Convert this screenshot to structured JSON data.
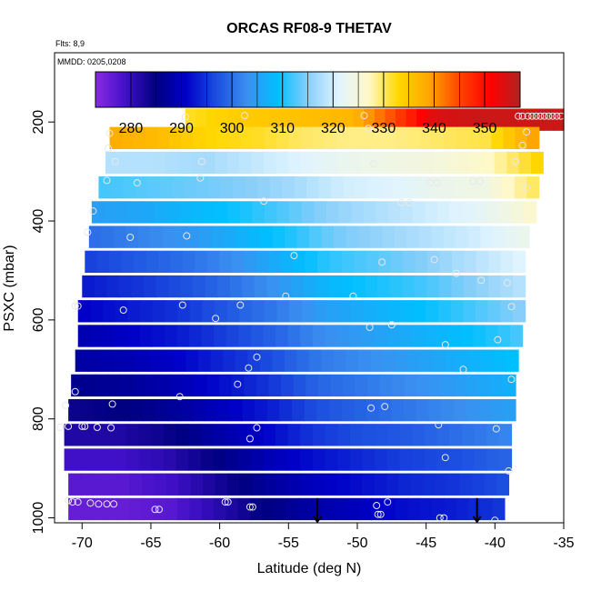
{
  "chart_data": {
    "type": "heatmap",
    "title": "ORCAS RF08-9 THETAV",
    "annotations": [
      "Flts: 8,9",
      "MMDD: 0205,0208"
    ],
    "xlabel": "Latitude (deg N)",
    "ylabel": "PSXC (mbar)",
    "xlim": [
      -72,
      -35
    ],
    "ylim": [
      1010,
      60
    ],
    "y_reversed": true,
    "x_ticks": [
      -70,
      -65,
      -60,
      -55,
      -50,
      -45,
      -40,
      -35
    ],
    "y_ticks": [
      200,
      400,
      600,
      800,
      1000
    ],
    "colorbar": {
      "ticks": [
        280,
        290,
        300,
        310,
        320,
        330,
        340,
        350
      ],
      "range": [
        273,
        357
      ],
      "colors": [
        "#8a2be2",
        "#4010c8",
        "#000080",
        "#0000c8",
        "#1c4fe0",
        "#3b8ff0",
        "#00bfff",
        "#87cefa",
        "#e0f4ff",
        "#fff8c8",
        "#ffd700",
        "#ffa500",
        "#ff4500",
        "#ff0000",
        "#b22222"
      ]
    },
    "layers": [
      {
        "p": 195,
        "lat_min": -62.5,
        "lat_max": -35.0,
        "values": [
          332,
          334,
          335,
          336,
          337,
          345,
          354,
          355,
          355,
          355
        ]
      },
      {
        "p": 232,
        "lat_min": -68.0,
        "lat_max": -36.8,
        "values": [
          338,
          336,
          333,
          332,
          330,
          329,
          329,
          330,
          331,
          339
        ]
      },
      {
        "p": 282,
        "lat_min": -68.3,
        "lat_max": -36.5,
        "values": [
          318,
          318,
          317,
          319,
          321,
          323,
          324,
          325,
          327,
          333
        ]
      },
      {
        "p": 332,
        "lat_min": -68.8,
        "lat_max": -36.8,
        "values": [
          312,
          313,
          314,
          315,
          317,
          320,
          321,
          323,
          324,
          330
        ]
      },
      {
        "p": 382,
        "lat_min": -69.3,
        "lat_max": -37.0,
        "values": [
          305,
          306,
          308,
          310,
          313,
          316,
          318,
          320,
          322,
          326
        ]
      },
      {
        "p": 432,
        "lat_min": -69.5,
        "lat_max": -37.5,
        "values": [
          300,
          302,
          304,
          307,
          310,
          314,
          316,
          318,
          320,
          323
        ]
      },
      {
        "p": 482,
        "lat_min": -69.8,
        "lat_max": -37.8,
        "values": [
          296,
          298,
          300,
          303,
          307,
          311,
          313,
          315,
          318,
          321
        ]
      },
      {
        "p": 532,
        "lat_min": -70.0,
        "lat_max": -37.8,
        "values": [
          293,
          295,
          297,
          300,
          304,
          308,
          310,
          312,
          315,
          318
        ]
      },
      {
        "p": 582,
        "lat_min": -70.3,
        "lat_max": -37.8,
        "values": [
          291,
          293,
          295,
          298,
          301,
          305,
          307,
          309,
          312,
          315
        ]
      },
      {
        "p": 632,
        "lat_min": -70.3,
        "lat_max": -38.0,
        "values": [
          289,
          291,
          293,
          296,
          299,
          303,
          305,
          307,
          309,
          312
        ]
      },
      {
        "p": 682,
        "lat_min": -70.5,
        "lat_max": -38.3,
        "values": [
          288,
          289,
          291,
          294,
          297,
          301,
          303,
          305,
          307,
          309
        ]
      },
      {
        "p": 732,
        "lat_min": -70.8,
        "lat_max": -38.5,
        "values": [
          286,
          287,
          289,
          292,
          295,
          299,
          301,
          303,
          305,
          307
        ]
      },
      {
        "p": 782,
        "lat_min": -71.0,
        "lat_max": -38.5,
        "values": [
          284,
          285,
          287,
          290,
          293,
          297,
          299,
          301,
          303,
          305
        ]
      },
      {
        "p": 832,
        "lat_min": -71.3,
        "lat_max": -38.8,
        "values": [
          282,
          282,
          284,
          288,
          291,
          295,
          297,
          298,
          300,
          302
        ]
      },
      {
        "p": 882,
        "lat_min": -71.3,
        "lat_max": -38.8,
        "values": [
          279,
          279,
          281,
          285,
          289,
          292,
          294,
          296,
          297,
          299
        ]
      },
      {
        "p": 932,
        "lat_min": -71.0,
        "lat_max": -39.0,
        "values": [
          277,
          277,
          279,
          283,
          287,
          290,
          292,
          294,
          295,
          297
        ]
      },
      {
        "p": 982,
        "lat_min": -71.0,
        "lat_max": -39.3,
        "values": [
          276,
          276,
          277,
          281,
          285,
          288,
          290,
          292,
          293,
          295
        ]
      }
    ],
    "points": [
      {
        "lat": -62.5,
        "p": 190
      },
      {
        "lat": -62.3,
        "p": 210
      },
      {
        "lat": -58.2,
        "p": 187
      },
      {
        "lat": -49.5,
        "p": 187
      },
      {
        "lat": -49.2,
        "p": 213
      },
      {
        "lat": -37.7,
        "p": 220
      },
      {
        "lat": -38.0,
        "p": 247
      },
      {
        "lat": -38.5,
        "p": 280
      },
      {
        "lat": -68.0,
        "p": 223
      },
      {
        "lat": -68.1,
        "p": 253
      },
      {
        "lat": -67.6,
        "p": 280
      },
      {
        "lat": -68.2,
        "p": 318
      },
      {
        "lat": -66.0,
        "p": 323
      },
      {
        "lat": -61.4,
        "p": 313
      },
      {
        "lat": -61.3,
        "p": 280
      },
      {
        "lat": -56.8,
        "p": 360
      },
      {
        "lat": -48.8,
        "p": 285
      },
      {
        "lat": -44.7,
        "p": 323
      },
      {
        "lat": -44.2,
        "p": 323
      },
      {
        "lat": -41.6,
        "p": 320
      },
      {
        "lat": -41.1,
        "p": 320
      },
      {
        "lat": -37.7,
        "p": 333
      },
      {
        "lat": -69.2,
        "p": 380
      },
      {
        "lat": -69.6,
        "p": 423
      },
      {
        "lat": -66.5,
        "p": 433
      },
      {
        "lat": -62.4,
        "p": 430
      },
      {
        "lat": -46.8,
        "p": 363
      },
      {
        "lat": -46.2,
        "p": 363
      },
      {
        "lat": -54.6,
        "p": 470
      },
      {
        "lat": -48.2,
        "p": 483
      },
      {
        "lat": -44.4,
        "p": 478
      },
      {
        "lat": -42.8,
        "p": 506
      },
      {
        "lat": -41.0,
        "p": 520
      },
      {
        "lat": -39.1,
        "p": 525
      },
      {
        "lat": -70.5,
        "p": 572
      },
      {
        "lat": -70.3,
        "p": 572
      },
      {
        "lat": -67.0,
        "p": 580
      },
      {
        "lat": -62.7,
        "p": 570
      },
      {
        "lat": -60.3,
        "p": 597
      },
      {
        "lat": -58.5,
        "p": 570
      },
      {
        "lat": -55.2,
        "p": 552
      },
      {
        "lat": -50.3,
        "p": 552
      },
      {
        "lat": -38.8,
        "p": 573
      },
      {
        "lat": -49.1,
        "p": 615
      },
      {
        "lat": -47.5,
        "p": 610
      },
      {
        "lat": -39.8,
        "p": 640
      },
      {
        "lat": -43.6,
        "p": 650
      },
      {
        "lat": -57.3,
        "p": 675
      },
      {
        "lat": -57.9,
        "p": 697
      },
      {
        "lat": -42.3,
        "p": 700
      },
      {
        "lat": -38.8,
        "p": 720
      },
      {
        "lat": -58.7,
        "p": 730
      },
      {
        "lat": -70.5,
        "p": 745
      },
      {
        "lat": -71.2,
        "p": 773
      },
      {
        "lat": -67.8,
        "p": 770
      },
      {
        "lat": -62.9,
        "p": 755
      },
      {
        "lat": -49.0,
        "p": 778
      },
      {
        "lat": -48.0,
        "p": 775
      },
      {
        "lat": -71.6,
        "p": 817
      },
      {
        "lat": -71.0,
        "p": 815
      },
      {
        "lat": -70.0,
        "p": 815
      },
      {
        "lat": -69.8,
        "p": 815
      },
      {
        "lat": -68.9,
        "p": 817
      },
      {
        "lat": -67.9,
        "p": 818
      },
      {
        "lat": -57.3,
        "p": 818
      },
      {
        "lat": -57.8,
        "p": 840
      },
      {
        "lat": -44.1,
        "p": 812
      },
      {
        "lat": -39.9,
        "p": 820
      },
      {
        "lat": -43.6,
        "p": 878
      },
      {
        "lat": -39.0,
        "p": 905
      },
      {
        "lat": -71.0,
        "p": 965
      },
      {
        "lat": -70.7,
        "p": 968
      },
      {
        "lat": -70.3,
        "p": 968
      },
      {
        "lat": -69.4,
        "p": 970
      },
      {
        "lat": -68.8,
        "p": 972
      },
      {
        "lat": -68.2,
        "p": 972
      },
      {
        "lat": -67.7,
        "p": 972
      },
      {
        "lat": -64.7,
        "p": 983
      },
      {
        "lat": -64.4,
        "p": 983
      },
      {
        "lat": -59.6,
        "p": 968
      },
      {
        "lat": -59.4,
        "p": 968
      },
      {
        "lat": -57.8,
        "p": 978
      },
      {
        "lat": -57.6,
        "p": 978
      },
      {
        "lat": -48.6,
        "p": 975
      },
      {
        "lat": -48.5,
        "p": 993
      },
      {
        "lat": -48.3,
        "p": 993
      },
      {
        "lat": -47.8,
        "p": 968
      },
      {
        "lat": -44.0,
        "p": 1000
      },
      {
        "lat": -43.7,
        "p": 1000
      },
      {
        "lat": -40.0,
        "p": 1005
      },
      {
        "lat": -35.2,
        "p": 188
      },
      {
        "lat": -35.5,
        "p": 188
      },
      {
        "lat": -35.8,
        "p": 188
      },
      {
        "lat": -36.1,
        "p": 188
      },
      {
        "lat": -36.4,
        "p": 188
      },
      {
        "lat": -36.7,
        "p": 188
      },
      {
        "lat": -37.0,
        "p": 188
      },
      {
        "lat": -37.3,
        "p": 188
      },
      {
        "lat": -37.6,
        "p": 188
      },
      {
        "lat": -38.0,
        "p": 188
      },
      {
        "lat": -38.3,
        "p": 188
      }
    ],
    "arrows": [
      {
        "lat": -52.9,
        "p_from": 960,
        "p_to": 1008
      },
      {
        "lat": -41.3,
        "p_from": 960,
        "p_to": 1008
      }
    ]
  }
}
